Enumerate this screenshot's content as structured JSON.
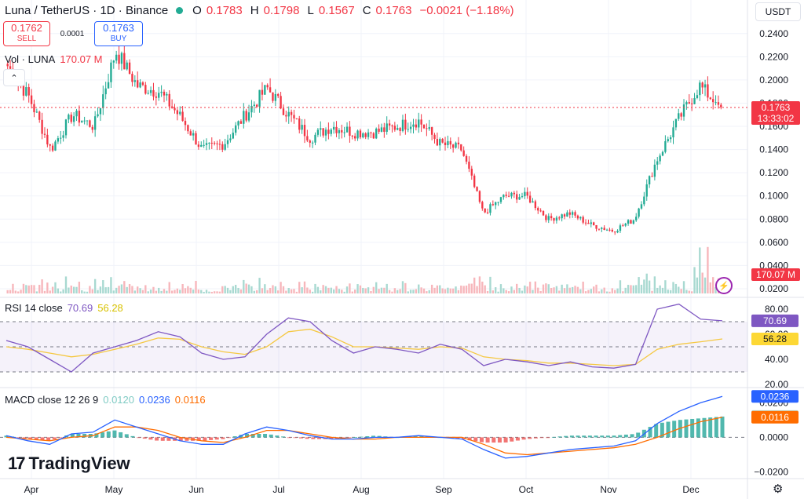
{
  "header": {
    "symbol": "Luna / TetherUS · 1D · Binance",
    "o_label": "O",
    "o_value": "0.1783",
    "h_label": "H",
    "h_value": "0.1798",
    "l_label": "L",
    "l_value": "0.1567",
    "c_label": "C",
    "c_value": "0.1763",
    "change": "−0.0021 (−1.18%)",
    "currency": "USDT"
  },
  "trade": {
    "sell_price": "0.1762",
    "sell_label": "SELL",
    "spread": "0.0001",
    "buy_price": "0.1763",
    "buy_label": "BUY"
  },
  "volume_legend": {
    "label": "Vol · LUNA",
    "value": "170.07 M"
  },
  "rsi_legend": {
    "label": "RSI 14 close",
    "rsi": "70.69",
    "ma": "56.28"
  },
  "macd_legend": {
    "label": "MACD close 12 26 9",
    "hist": "0.0120",
    "macd": "0.0236",
    "signal": "0.0116"
  },
  "logo_text": "TradingView",
  "colors": {
    "up": "#22ab94",
    "down": "#f23645",
    "rsi": "#7e57c2",
    "rsi_ma": "#fdd835",
    "macd": "#2962ff",
    "signal": "#ff6d00",
    "hist_up": "#26a69a",
    "hist_down": "#ef5350"
  },
  "chart_data": [
    {
      "type": "candlestick",
      "title": "Luna / TetherUS · 1D · Binance",
      "x_labels": [
        "Apr",
        "May",
        "Jun",
        "Jul",
        "Aug",
        "Sep",
        "Oct",
        "Nov",
        "Dec"
      ],
      "y_ticks": [
        "0.0200",
        "0.0400",
        "0.0600",
        "0.0800",
        "0.1000",
        "0.1200",
        "0.1400",
        "0.1600",
        "0.1800",
        "0.2000",
        "0.2200",
        "0.2400"
      ],
      "ylim": [
        0.02,
        0.25
      ],
      "last_price": "0.1763",
      "countdown": "13:33:02",
      "volume_last": "170.07 M",
      "series": [
        {
          "name": "close",
          "x": [
            "Mar 21",
            "Apr 1",
            "Apr 8",
            "Apr 20",
            "May 1",
            "May 8",
            "May 15",
            "May 28",
            "Jun 5",
            "Jun 18",
            "Jun 28",
            "Jul 10",
            "Jul 22",
            "Jul 25",
            "Aug 2",
            "Aug 10",
            "Aug 20",
            "Sep 2",
            "Sep 10",
            "Sep 20",
            "Oct 1",
            "Oct 10",
            "Oct 11",
            "Oct 15",
            "Oct 25",
            "Nov 1",
            "Nov 10",
            "Nov 20",
            "Nov 30",
            "Dec 2",
            "Dec 5",
            "Dec 8",
            "Dec 10",
            "Dec 11"
          ],
          "values": [
            0.212,
            0.185,
            0.14,
            0.17,
            0.16,
            0.225,
            0.195,
            0.19,
            0.168,
            0.14,
            0.145,
            0.17,
            0.193,
            0.17,
            0.15,
            0.16,
            0.155,
            0.155,
            0.16,
            0.165,
            0.145,
            0.14,
            0.085,
            0.1,
            0.1,
            0.08,
            0.085,
            0.075,
            0.07,
            0.08,
            0.13,
            0.165,
            0.195,
            0.1763
          ]
        }
      ]
    },
    {
      "type": "line",
      "title": "RSI 14 close",
      "y_ticks": [
        "20.00",
        "40.00",
        "60.00",
        "80.00"
      ],
      "ylim": [
        20,
        85
      ],
      "bands": [
        30,
        50,
        70
      ],
      "series": [
        {
          "name": "RSI",
          "last": 70.69,
          "values": [
            55,
            50,
            40,
            30,
            45,
            50,
            55,
            62,
            58,
            45,
            40,
            42,
            60,
            73,
            70,
            55,
            45,
            50,
            48,
            45,
            52,
            48,
            35,
            40,
            38,
            35,
            38,
            34,
            33,
            36,
            80,
            84,
            72,
            70.69
          ]
        },
        {
          "name": "MA",
          "last": 56.28,
          "values": [
            50,
            48,
            45,
            42,
            44,
            48,
            52,
            57,
            56,
            50,
            46,
            44,
            50,
            62,
            64,
            58,
            50,
            50,
            49,
            48,
            50,
            49,
            42,
            40,
            39,
            37,
            37,
            36,
            35,
            36,
            48,
            52,
            54,
            56.28
          ]
        }
      ]
    },
    {
      "type": "line",
      "title": "MACD close 12 26 9",
      "y_ticks": [
        "0.0000",
        "0.0200",
        "−0.0200"
      ],
      "ylim": [
        -0.022,
        0.026
      ],
      "series": [
        {
          "name": "MACD",
          "last": 0.0236,
          "values": [
            0.001,
            -0.002,
            -0.004,
            0.002,
            0.003,
            0.01,
            0.006,
            0.002,
            -0.002,
            -0.004,
            -0.004,
            0.002,
            0.006,
            0.004,
            0.001,
            -0.001,
            -0.001,
            0.0,
            0.0,
            0.001,
            0.0,
            -0.001,
            -0.007,
            -0.012,
            -0.011,
            -0.009,
            -0.007,
            -0.006,
            -0.005,
            -0.002,
            0.008,
            0.015,
            0.02,
            0.0236
          ]
        },
        {
          "name": "Signal",
          "last": 0.0116,
          "values": [
            0.0,
            -0.001,
            -0.002,
            0.0,
            0.001,
            0.006,
            0.006,
            0.004,
            0.0,
            -0.002,
            -0.003,
            0.0,
            0.004,
            0.004,
            0.002,
            0.0,
            -0.001,
            -0.001,
            0.0,
            0.0,
            0.0,
            0.0,
            -0.004,
            -0.009,
            -0.01,
            -0.009,
            -0.008,
            -0.007,
            -0.006,
            -0.004,
            0.0,
            0.005,
            0.009,
            0.0116
          ]
        },
        {
          "name": "Histogram",
          "last": 0.012
        }
      ]
    }
  ]
}
